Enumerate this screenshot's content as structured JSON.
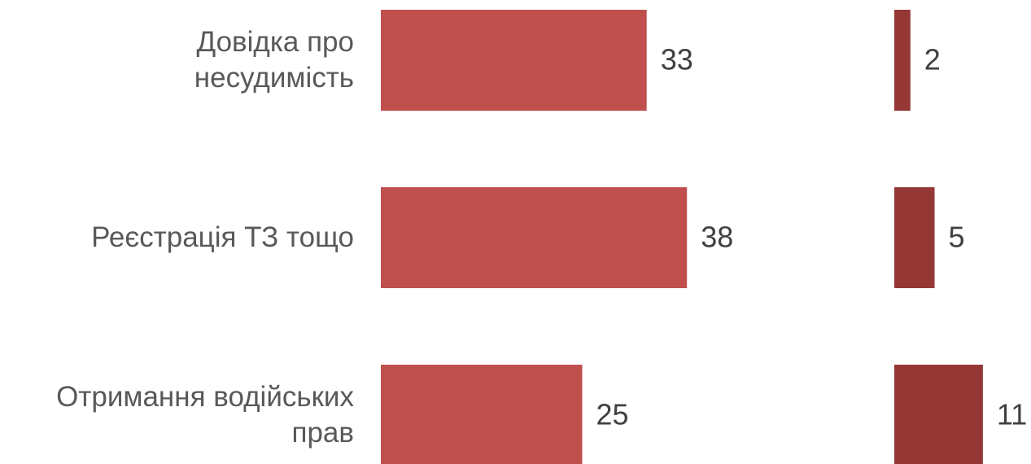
{
  "chart_data": {
    "type": "bar",
    "orientation": "horizontal",
    "categories": [
      "Довідка про несудимість",
      "Реєстрація ТЗ тощо",
      "Отримання водійських прав"
    ],
    "series": [
      {
        "color": "#c0504d",
        "values": [
          33,
          38,
          25
        ]
      },
      {
        "color": "#953735",
        "values": [
          2,
          5,
          11
        ]
      }
    ]
  }
}
